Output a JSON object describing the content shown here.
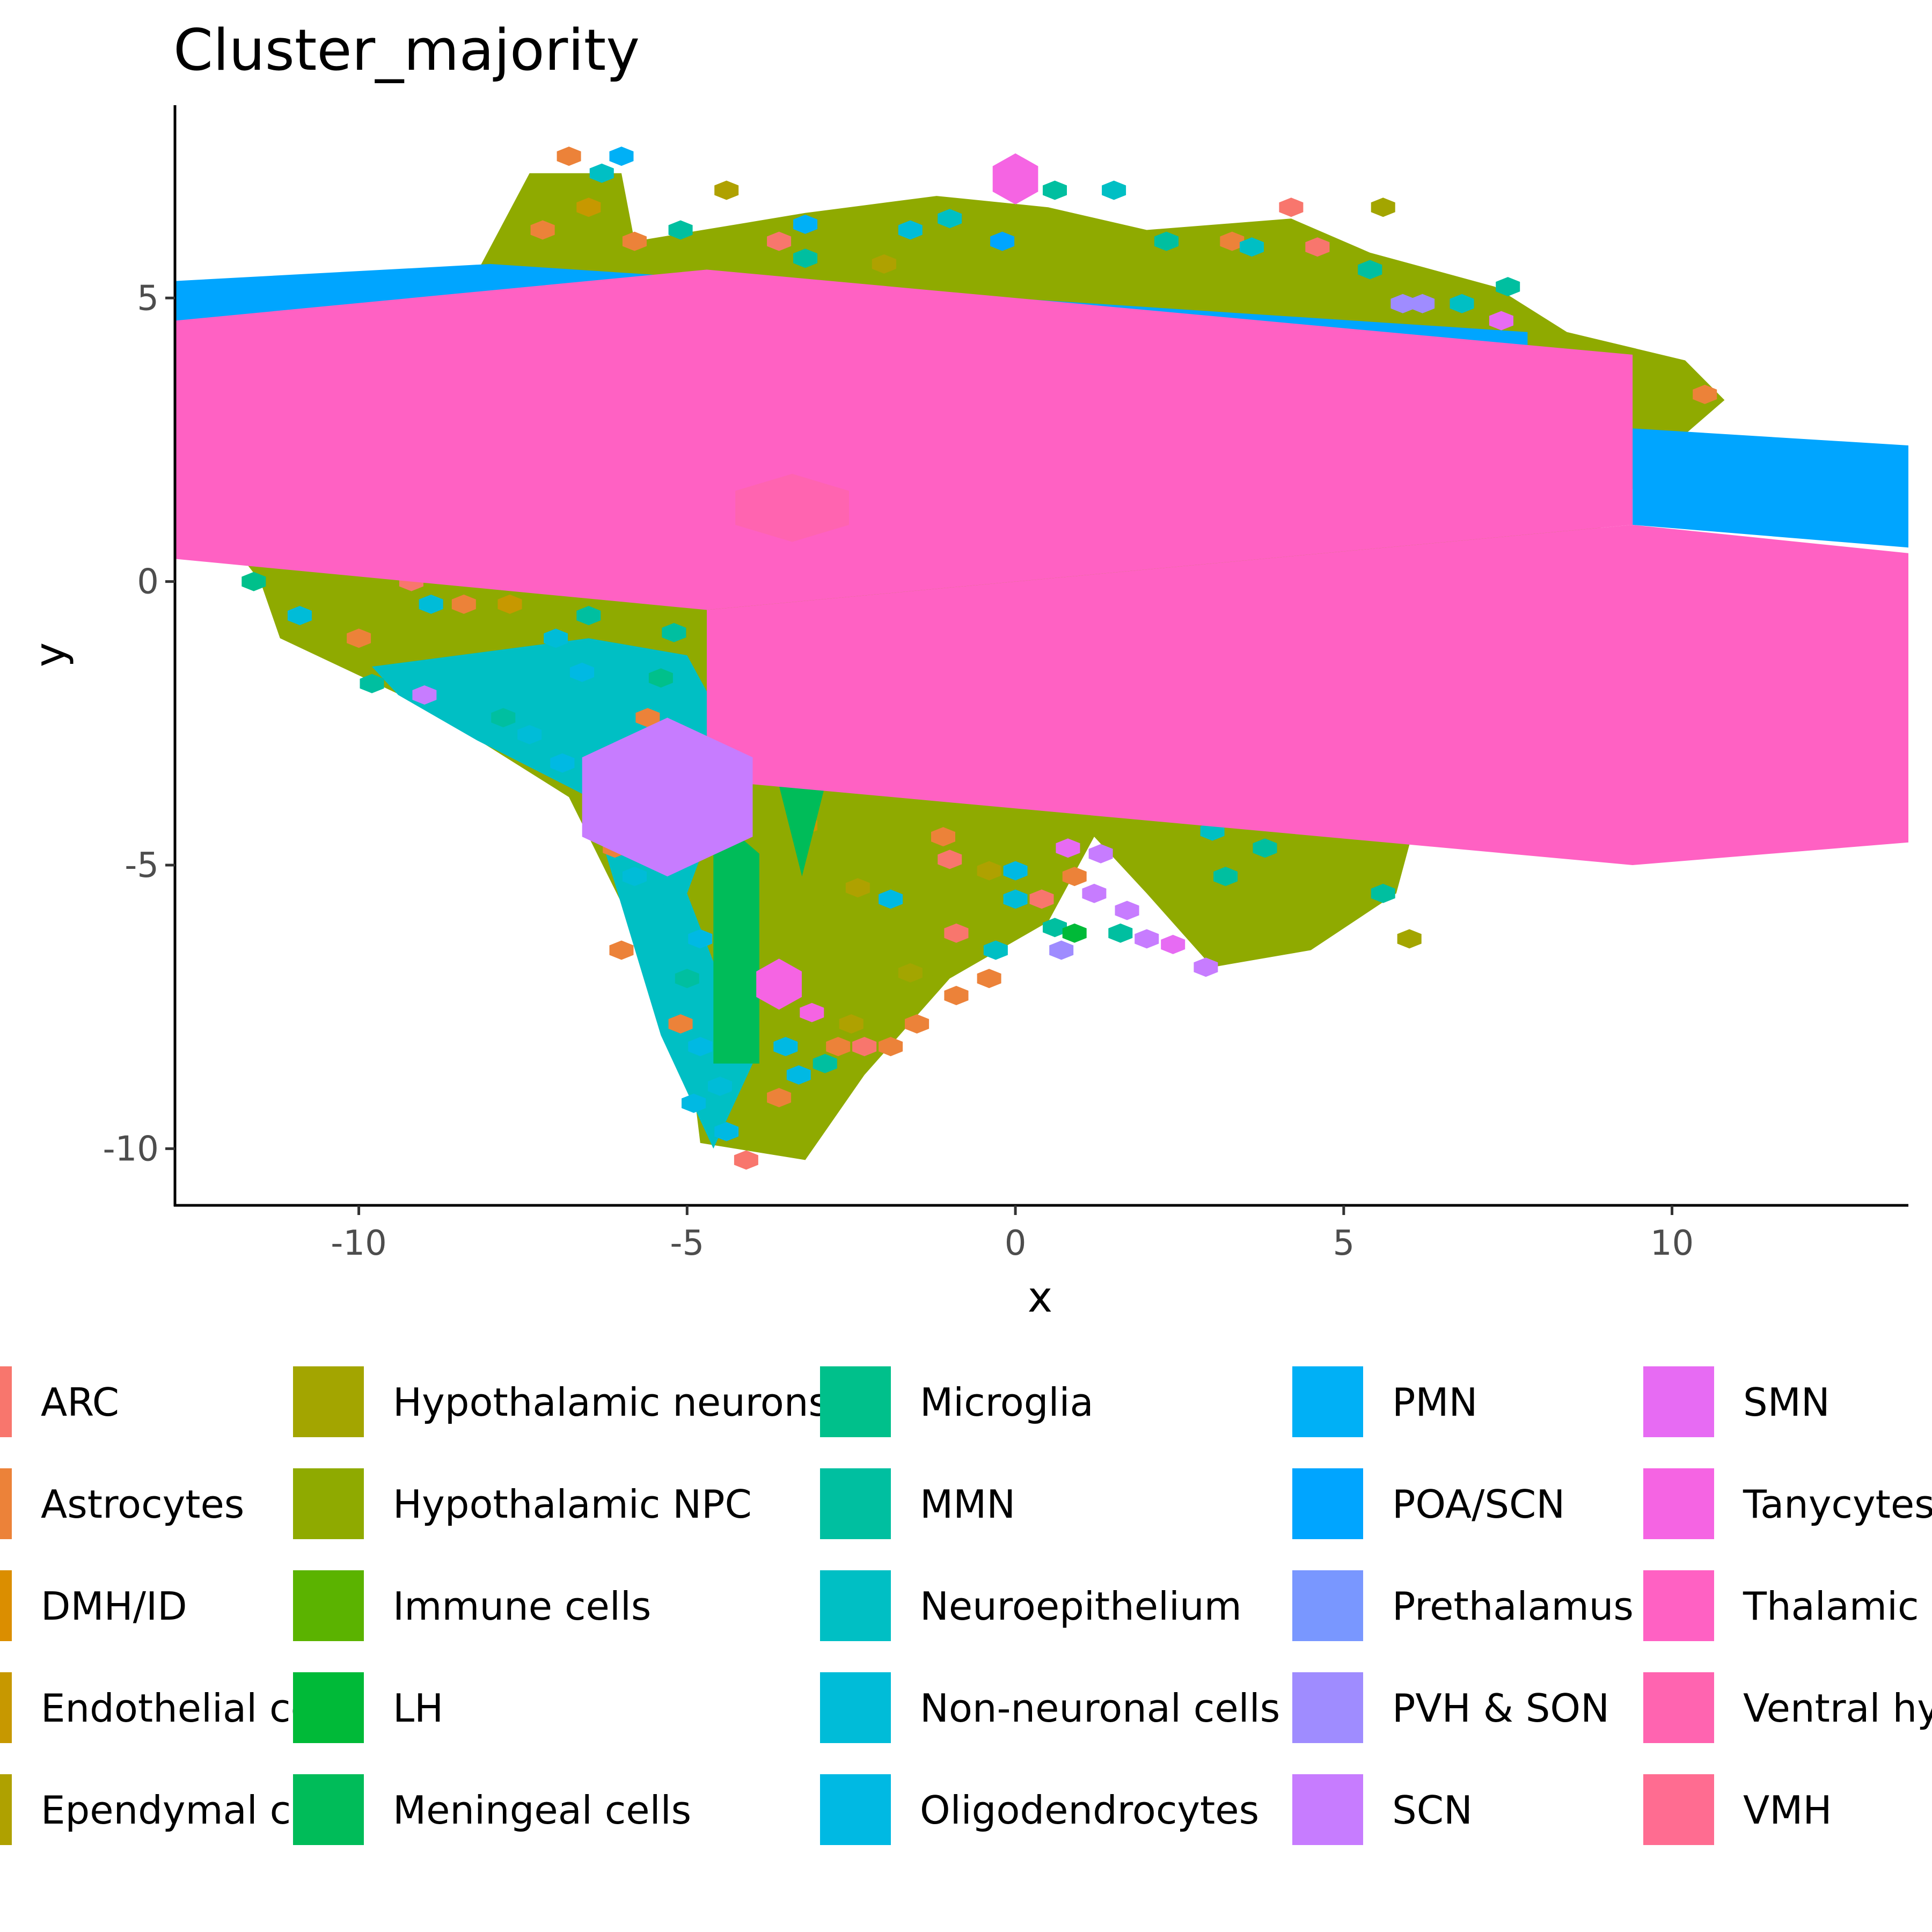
{
  "chart_data": {
    "type": "hexbin",
    "title": "Cluster_majority",
    "xlabel": "x",
    "ylabel": "y",
    "xlim": [
      -12.8,
      13.6
    ],
    "ylim": [
      -11.0,
      8.4
    ],
    "x_ticks": [
      -10,
      -5,
      0,
      5,
      10
    ],
    "y_ticks": [
      -10,
      -5,
      0,
      5
    ],
    "grid": false,
    "legend_position": "bottom",
    "legend": [
      {
        "label": "ARC",
        "color": "#F8766D"
      },
      {
        "label": "Astrocytes",
        "color": "#EC8239"
      },
      {
        "label": "DMH/ID",
        "color": "#DB8E00"
      },
      {
        "label": "Endothelial cells",
        "color": "#C79800"
      },
      {
        "label": "Ependymal cells",
        "color": "#AFA100"
      },
      {
        "label": "Hypothalamic neurons",
        "color": "#A3A500"
      },
      {
        "label": "Hypothalamic NPC",
        "color": "#8FAA00"
      },
      {
        "label": "Immune cells",
        "color": "#5BB300"
      },
      {
        "label": "LH",
        "color": "#00BA38"
      },
      {
        "label": "Meningeal cells",
        "color": "#00BC59"
      },
      {
        "label": "Microglia",
        "color": "#00C08B"
      },
      {
        "label": "MMN",
        "color": "#00BFA0"
      },
      {
        "label": "Neuroepithelium",
        "color": "#00BFC4"
      },
      {
        "label": "Non-neuronal cells",
        "color": "#00BCD8"
      },
      {
        "label": "Oligodendrocytes",
        "color": "#00B9E3"
      },
      {
        "label": "PMN",
        "color": "#00B0F6"
      },
      {
        "label": "POA/SCN",
        "color": "#00A5FF"
      },
      {
        "label": "Prethalamus",
        "color": "#7997FF"
      },
      {
        "label": "PVH & SON",
        "color": "#9F8CFF"
      },
      {
        "label": "SCN",
        "color": "#C77CFF"
      },
      {
        "label": "SMN",
        "color": "#E76BF3"
      },
      {
        "label": "Tanycytes",
        "color": "#F564E3"
      },
      {
        "label": "Thalamic",
        "color": "#FF61C3"
      },
      {
        "label": "Ventral hy",
        "color": "#FF64B0"
      },
      {
        "label": "VMH",
        "color": "#FF6C91"
      }
    ],
    "regions": [
      {
        "name": "Hypothalamic NPC",
        "points": [
          [
            -7.4,
            7.2
          ],
          [
            -6.0,
            7.2
          ],
          [
            -5.8,
            6.0
          ],
          [
            -3.2,
            6.5
          ],
          [
            -1.2,
            6.8
          ],
          [
            0.5,
            6.6
          ],
          [
            2.0,
            6.2
          ],
          [
            4.2,
            6.4
          ],
          [
            5.4,
            5.8
          ],
          [
            7.3,
            5.2
          ],
          [
            8.4,
            4.4
          ],
          [
            10.2,
            3.9
          ],
          [
            10.8,
            3.2
          ],
          [
            9.8,
            2.2
          ],
          [
            8.6,
            0.5
          ],
          [
            6.5,
            -2.5
          ],
          [
            5.8,
            -5.5
          ],
          [
            4.5,
            -6.5
          ],
          [
            3.0,
            -6.8
          ],
          [
            2.0,
            -5.5
          ],
          [
            1.2,
            -4.5
          ],
          [
            0.5,
            -6.0
          ],
          [
            -1.0,
            -7.0
          ],
          [
            -2.3,
            -8.7
          ],
          [
            -3.2,
            -10.2
          ],
          [
            -4.8,
            -9.9
          ],
          [
            -5.0,
            -8.0
          ],
          [
            -6.8,
            -3.8
          ],
          [
            -9.0,
            -2.2
          ],
          [
            -11.2,
            -1.0
          ],
          [
            -11.5,
            0.0
          ],
          [
            -12.1,
            0.9
          ],
          [
            -10.0,
            2.4
          ],
          [
            -8.5,
            4.8
          ]
        ]
      },
      {
        "name": "Neuroepithelium",
        "points": [
          [
            -9.8,
            -1.5
          ],
          [
            -6.5,
            -1.0
          ],
          [
            -5.0,
            -1.3
          ],
          [
            -4.2,
            -3.0
          ],
          [
            -5.0,
            -5.5
          ],
          [
            -4.0,
            -8.5
          ],
          [
            -4.6,
            -10.0
          ],
          [
            -5.4,
            -8.0
          ],
          [
            -6.5,
            -3.8
          ],
          [
            -8.2,
            -2.8
          ],
          [
            -9.4,
            -2.0
          ]
        ]
      }
    ],
    "points": [
      {
        "x": -6.8,
        "y": 7.5,
        "color": "#EC8239"
      },
      {
        "x": -6.3,
        "y": 7.2,
        "color": "#00BFC4"
      },
      {
        "x": -6.0,
        "y": 7.5,
        "color": "#00B0F6"
      },
      {
        "x": -6.5,
        "y": 6.6,
        "color": "#C79800"
      },
      {
        "x": -5.8,
        "y": 6.0,
        "color": "#EC8239"
      },
      {
        "x": -7.2,
        "y": 6.2,
        "color": "#EC8239"
      },
      {
        "x": -5.1,
        "y": 6.2,
        "color": "#00BFA0"
      },
      {
        "x": -4.4,
        "y": 6.9,
        "color": "#AFA100"
      },
      {
        "x": -3.2,
        "y": 6.3,
        "color": "#00B0F6"
      },
      {
        "x": -3.6,
        "y": 6.0,
        "color": "#F8766D"
      },
      {
        "x": -3.2,
        "y": 5.7,
        "color": "#00BFA0"
      },
      {
        "x": -2.0,
        "y": 5.6,
        "color": "#AFA100"
      },
      {
        "x": -1.6,
        "y": 6.2,
        "color": "#00BCD8"
      },
      {
        "x": -0.2,
        "y": 6.0,
        "color": "#00A5FF"
      },
      {
        "x": -1.0,
        "y": 6.4,
        "color": "#00BFC4"
      },
      {
        "x": 0.6,
        "y": 6.9,
        "color": "#00BFA0"
      },
      {
        "x": 1.5,
        "y": 6.9,
        "color": "#00BFC4"
      },
      {
        "x": 2.3,
        "y": 6.0,
        "color": "#00BFA0"
      },
      {
        "x": 3.3,
        "y": 6.0,
        "color": "#EC8239"
      },
      {
        "x": 3.6,
        "y": 5.9,
        "color": "#00BFC4"
      },
      {
        "x": 4.2,
        "y": 6.6,
        "color": "#F8766D"
      },
      {
        "x": 4.6,
        "y": 5.9,
        "color": "#F8766D"
      },
      {
        "x": 5.6,
        "y": 6.6,
        "color": "#A3A500"
      },
      {
        "x": 5.4,
        "y": 5.5,
        "color": "#00BFA0"
      },
      {
        "x": 6.2,
        "y": 4.9,
        "color": "#9F8CFF"
      },
      {
        "x": 5.9,
        "y": 4.9,
        "color": "#9F8CFF"
      },
      {
        "x": 6.8,
        "y": 4.9,
        "color": "#00BFC4"
      },
      {
        "x": 7.4,
        "y": 4.6,
        "color": "#E76BF3"
      },
      {
        "x": 7.5,
        "y": 5.2,
        "color": "#00BFA0"
      },
      {
        "x": 8.3,
        "y": 2.8,
        "color": "#F8766D"
      },
      {
        "x": 10.5,
        "y": 3.3,
        "color": "#EC8239"
      },
      {
        "x": 8.0,
        "y": 0.6,
        "color": "#F8766D"
      },
      {
        "x": -4.0,
        "y": 4.2,
        "color": "#F8766D"
      },
      {
        "x": -3.2,
        "y": 3.5,
        "color": "#F8766D"
      },
      {
        "x": -11.0,
        "y": 1.1,
        "color": "#F8766D"
      },
      {
        "x": -1.6,
        "y": 0.9,
        "color": "#F8766D"
      },
      {
        "x": -1.1,
        "y": 0.4,
        "color": "#F8766D"
      },
      {
        "x": 0.9,
        "y": -1.3,
        "color": "#F8766D"
      },
      {
        "x": -11.6,
        "y": 0.0,
        "color": "#00C08B"
      },
      {
        "x": -10.9,
        "y": -0.6,
        "color": "#00BCD8"
      },
      {
        "x": -10.0,
        "y": -1.0,
        "color": "#EC8239"
      },
      {
        "x": -9.8,
        "y": -1.8,
        "color": "#00BFA0"
      },
      {
        "x": -9.0,
        "y": -2.0,
        "color": "#C77CFF"
      },
      {
        "x": -8.9,
        "y": -0.4,
        "color": "#00BCD8"
      },
      {
        "x": -9.2,
        "y": 0.0,
        "color": "#F8766D"
      },
      {
        "x": -8.4,
        "y": -0.4,
        "color": "#EC8239"
      },
      {
        "x": -7.7,
        "y": -0.4,
        "color": "#C79800"
      },
      {
        "x": -7.0,
        "y": -1.0,
        "color": "#00BCD8"
      },
      {
        "x": -6.5,
        "y": -0.6,
        "color": "#00BFA0"
      },
      {
        "x": -6.0,
        "y": -1.4,
        "color": "#00BFC4"
      },
      {
        "x": -6.6,
        "y": -1.6,
        "color": "#00B9E3"
      },
      {
        "x": -5.2,
        "y": -0.9,
        "color": "#00BFA0"
      },
      {
        "x": -5.4,
        "y": -1.7,
        "color": "#00C08B"
      },
      {
        "x": -5.6,
        "y": -2.4,
        "color": "#EC8239"
      },
      {
        "x": -6.4,
        "y": -2.8,
        "color": "#00BFC4"
      },
      {
        "x": -6.9,
        "y": -3.2,
        "color": "#00B9E3"
      },
      {
        "x": -7.4,
        "y": -2.7,
        "color": "#00BCD8"
      },
      {
        "x": -7.8,
        "y": -2.4,
        "color": "#00BFA0"
      },
      {
        "x": -6.1,
        "y": -4.7,
        "color": "#EC8239"
      },
      {
        "x": -5.8,
        "y": -5.2,
        "color": "#00BCD8"
      },
      {
        "x": -5.2,
        "y": -5.6,
        "color": "#00BFC4"
      },
      {
        "x": -4.8,
        "y": -6.3,
        "color": "#00B9E3"
      },
      {
        "x": -6.0,
        "y": -6.5,
        "color": "#EC8239"
      },
      {
        "x": -5.0,
        "y": -7.0,
        "color": "#00BFA0"
      },
      {
        "x": -5.1,
        "y": -7.8,
        "color": "#EC8239"
      },
      {
        "x": -4.8,
        "y": -8.2,
        "color": "#00B9E3"
      },
      {
        "x": -4.5,
        "y": -8.9,
        "color": "#00BCD8"
      },
      {
        "x": -4.9,
        "y": -9.2,
        "color": "#00B9E3"
      },
      {
        "x": -4.4,
        "y": -9.7,
        "color": "#00B9E3"
      },
      {
        "x": -4.1,
        "y": -10.2,
        "color": "#F8766D"
      },
      {
        "x": -3.6,
        "y": -9.1,
        "color": "#EC8239"
      },
      {
        "x": -3.3,
        "y": -8.7,
        "color": "#00B9E3"
      },
      {
        "x": -2.7,
        "y": -8.2,
        "color": "#EC8239"
      },
      {
        "x": -2.3,
        "y": -8.2,
        "color": "#F8766D"
      },
      {
        "x": -1.9,
        "y": -8.2,
        "color": "#EC8239"
      },
      {
        "x": -1.5,
        "y": -7.8,
        "color": "#EC8239"
      },
      {
        "x": -0.9,
        "y": -7.3,
        "color": "#EC8239"
      },
      {
        "x": -0.4,
        "y": -7.0,
        "color": "#EC8239"
      },
      {
        "x": -2.5,
        "y": -7.8,
        "color": "#AFA100"
      },
      {
        "x": -3.5,
        "y": -8.2,
        "color": "#00B9E3"
      },
      {
        "x": -2.9,
        "y": -8.5,
        "color": "#00BFA0"
      },
      {
        "x": -3.1,
        "y": -7.6,
        "color": "#F564E3"
      },
      {
        "x": -3.2,
        "y": -4.3,
        "color": "#C79800"
      },
      {
        "x": -2.4,
        "y": -5.4,
        "color": "#AFA100"
      },
      {
        "x": -2.8,
        "y": -5.6,
        "color": "#8FAA00"
      },
      {
        "x": -1.9,
        "y": -5.6,
        "color": "#00B9E3"
      },
      {
        "x": -2.1,
        "y": -4.6,
        "color": "#8FAA00"
      },
      {
        "x": -1.1,
        "y": -4.5,
        "color": "#EC8239"
      },
      {
        "x": -1.0,
        "y": -4.9,
        "color": "#F8766D"
      },
      {
        "x": -1.2,
        "y": -6.8,
        "color": "#8FAA00"
      },
      {
        "x": -0.9,
        "y": -6.2,
        "color": "#F8766D"
      },
      {
        "x": -0.3,
        "y": -6.5,
        "color": "#00BFC4"
      },
      {
        "x": -1.6,
        "y": -6.9,
        "color": "#A3A500"
      },
      {
        "x": -0.4,
        "y": -5.1,
        "color": "#AFA100"
      },
      {
        "x": 0.0,
        "y": -5.1,
        "color": "#00B9E3"
      },
      {
        "x": 0.0,
        "y": -5.6,
        "color": "#00BCD8"
      },
      {
        "x": 0.4,
        "y": -5.6,
        "color": "#F8766D"
      },
      {
        "x": 0.9,
        "y": -5.2,
        "color": "#EC8239"
      },
      {
        "x": 1.2,
        "y": -5.5,
        "color": "#C77CFF"
      },
      {
        "x": 0.6,
        "y": -6.1,
        "color": "#00BFA0"
      },
      {
        "x": 0.9,
        "y": -6.2,
        "color": "#00BA38"
      },
      {
        "x": 1.7,
        "y": -5.8,
        "color": "#C77CFF"
      },
      {
        "x": 2.0,
        "y": -6.3,
        "color": "#C77CFF"
      },
      {
        "x": 1.6,
        "y": -6.2,
        "color": "#00BFA0"
      },
      {
        "x": 0.7,
        "y": -6.5,
        "color": "#9F8CFF"
      },
      {
        "x": 2.4,
        "y": -6.4,
        "color": "#E76BF3"
      },
      {
        "x": 2.9,
        "y": -6.8,
        "color": "#C77CFF"
      },
      {
        "x": 3.0,
        "y": -4.4,
        "color": "#00BFC4"
      },
      {
        "x": 3.2,
        "y": -5.2,
        "color": "#00BFA0"
      },
      {
        "x": 3.8,
        "y": -4.7,
        "color": "#00BFA0"
      },
      {
        "x": 1.3,
        "y": -4.8,
        "color": "#C77CFF"
      },
      {
        "x": 0.8,
        "y": -4.7,
        "color": "#E76BF3"
      },
      {
        "x": -4.2,
        "y": -2.5,
        "color": "#F8766D"
      },
      {
        "x": -3.6,
        "y": -2.0,
        "color": "#00BFA0"
      },
      {
        "x": 6.2,
        "y": -3.2,
        "color": "#F8766D"
      },
      {
        "x": 6.5,
        "y": -3.2,
        "color": "#F8766D"
      },
      {
        "x": 6.8,
        "y": -3.7,
        "color": "#F8766D"
      },
      {
        "x": 7.6,
        "y": -3.6,
        "color": "#F8766D"
      },
      {
        "x": 7.4,
        "y": -3.4,
        "color": "#F8766D"
      },
      {
        "x": 9.0,
        "y": -2.5,
        "color": "#F8766D"
      },
      {
        "x": 5.6,
        "y": -5.5,
        "color": "#00BFA0"
      },
      {
        "x": 6.0,
        "y": -6.3,
        "color": "#A3A500"
      },
      {
        "x": -4.2,
        "y": -4.2,
        "color": "#EC8239"
      },
      {
        "x": -5.9,
        "y": -3.7,
        "color": "#00BFA0"
      }
    ],
    "big_shapes": [
      {
        "cluster": "SCN",
        "color": "#C77CFF",
        "type": "hexagon",
        "cx": -5.3,
        "cy": -3.8,
        "rx": 1.5,
        "ry": 1.4
      },
      {
        "cluster": "Ventral hy",
        "color": "#FF64B0",
        "type": "hexagon",
        "cx": -3.4,
        "cy": 1.3,
        "rx": 1.0,
        "ry": 0.6
      },
      {
        "cluster": "Tanycytes",
        "color": "#F564E3",
        "type": "hexagon",
        "cx": 0.0,
        "cy": 7.1,
        "rx": 0.4,
        "ry": 0.45
      },
      {
        "cluster": "Tanycytes",
        "color": "#F564E3",
        "type": "hexagon",
        "cx": -3.6,
        "cy": -7.1,
        "rx": 0.4,
        "ry": 0.45
      },
      {
        "cluster": "Meningeal cells",
        "color": "#00BC59",
        "type": "spike",
        "points": [
          [
            -4.6,
            -4.8
          ],
          [
            -4.2,
            -4.5
          ],
          [
            -3.9,
            -4.8
          ],
          [
            -3.9,
            -8.5
          ],
          [
            -4.6,
            -8.5
          ]
        ]
      },
      {
        "cluster": "Meningeal cells",
        "color": "#00BC59",
        "type": "spike",
        "points": [
          [
            -3.6,
            -3.6
          ],
          [
            -2.9,
            -3.6
          ],
          [
            -3.25,
            -5.2
          ]
        ]
      }
    ],
    "bands": [
      {
        "cluster": "POA/SCN",
        "color": "#00A5FF",
        "points": [
          [
            -12.8,
            5.3
          ],
          [
            -8.0,
            5.6
          ],
          [
            7.8,
            4.4
          ],
          [
            7.8,
            4.0
          ],
          [
            -12.8,
            4.0
          ]
        ]
      },
      {
        "cluster": "POA/SCN",
        "color": "#00A5FF",
        "points": [
          [
            9.4,
            2.7
          ],
          [
            13.6,
            2.4
          ],
          [
            13.6,
            0.6
          ],
          [
            9.4,
            1.0
          ]
        ]
      },
      {
        "cluster": "Thalamic",
        "color": "#FF61C3",
        "points": [
          [
            -12.8,
            4.6
          ],
          [
            -4.7,
            5.5
          ],
          [
            9.4,
            4.0
          ],
          [
            9.4,
            1.0
          ],
          [
            -4.7,
            -0.5
          ],
          [
            -12.8,
            0.4
          ]
        ]
      },
      {
        "cluster": "Thalamic",
        "color": "#FF61C3",
        "points": [
          [
            -4.7,
            -0.5
          ],
          [
            9.4,
            1.0
          ],
          [
            13.6,
            0.5
          ],
          [
            13.6,
            -4.6
          ],
          [
            9.4,
            -5.0
          ],
          [
            -4.7,
            -3.5
          ]
        ]
      }
    ]
  }
}
